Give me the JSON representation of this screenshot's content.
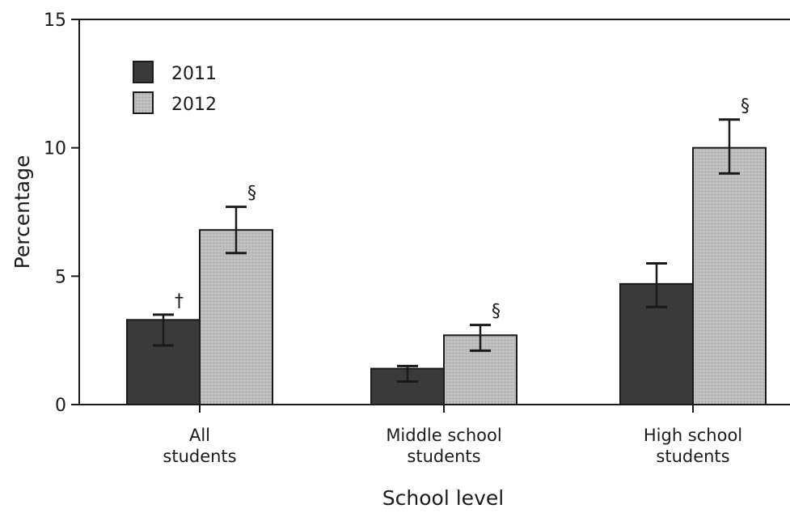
{
  "chart_data": {
    "type": "bar",
    "xlabel": "School level",
    "ylabel": "Percentage",
    "ylim": [
      0,
      15
    ],
    "yticks": [
      0,
      5,
      10,
      15
    ],
    "grid": false,
    "legend_position": "top-left",
    "categories": [
      [
        "All",
        "students"
      ],
      [
        "Middle school",
        "students"
      ],
      [
        "High school",
        "students"
      ]
    ],
    "series": [
      {
        "name": "2011",
        "color": "#3a3a3a",
        "values": [
          3.3,
          1.4,
          4.7
        ],
        "error_low": [
          2.3,
          0.9,
          3.8
        ],
        "error_high": [
          3.5,
          1.5,
          5.5
        ],
        "annotations": [
          "†",
          "",
          ""
        ]
      },
      {
        "name": "2012",
        "color": "#bdbdbd",
        "values": [
          6.8,
          2.7,
          10.0
        ],
        "error_low": [
          5.9,
          2.1,
          9.0
        ],
        "error_high": [
          7.7,
          3.1,
          11.1
        ],
        "annotations": [
          "§",
          "§",
          "§"
        ]
      }
    ]
  }
}
